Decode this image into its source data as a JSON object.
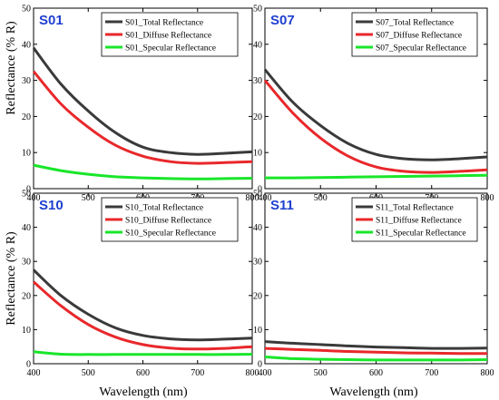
{
  "chart_data": {
    "type": "line",
    "panels": [
      {
        "title": "S01",
        "xlim": [
          400,
          800
        ],
        "ylim": [
          0,
          50
        ],
        "xticks": [
          400,
          500,
          600,
          700,
          800
        ],
        "yticks": [
          0,
          10,
          20,
          30,
          40,
          50
        ],
        "legend": "top-right",
        "series": [
          {
            "name": "S01_Total Reflectance",
            "x": [
              400,
              450,
              500,
              550,
              600,
              650,
              700,
              750,
              800
            ],
            "y": [
              39,
              29,
              21.5,
              15.5,
              11.5,
              10,
              9.5,
              9.8,
              10.2
            ]
          },
          {
            "name": "S01_Diffuse Reflectance",
            "x": [
              400,
              450,
              500,
              550,
              600,
              650,
              700,
              750,
              800
            ],
            "y": [
              32.5,
              23.5,
              17,
              12,
              9,
              7.5,
              7,
              7.2,
              7.5
            ]
          },
          {
            "name": "S01_Specular Reflectance",
            "x": [
              400,
              450,
              500,
              550,
              600,
              650,
              700,
              750,
              800
            ],
            "y": [
              6.5,
              5,
              4,
              3.3,
              3,
              2.8,
              2.7,
              2.8,
              2.9
            ]
          }
        ]
      },
      {
        "title": "S07",
        "xlim": [
          400,
          800
        ],
        "ylim": [
          0,
          50
        ],
        "xticks": [
          400,
          500,
          600,
          700,
          800
        ],
        "yticks": [
          0,
          10,
          20,
          30,
          40,
          50
        ],
        "legend": "top-right",
        "series": [
          {
            "name": "S07_Total Reflectance",
            "x": [
              400,
              450,
              500,
              550,
              600,
              650,
              700,
              750,
              800
            ],
            "y": [
              33,
              24,
              17.5,
              12.5,
              9.5,
              8.3,
              8,
              8.3,
              8.8
            ]
          },
          {
            "name": "S07_Diffuse Reflectance",
            "x": [
              400,
              450,
              500,
              550,
              600,
              650,
              700,
              750,
              800
            ],
            "y": [
              30,
              21,
              14,
              9,
              6,
              4.8,
              4.5,
              4.8,
              5.2
            ]
          },
          {
            "name": "S07_Specular Reflectance",
            "x": [
              400,
              450,
              500,
              550,
              600,
              650,
              700,
              750,
              800
            ],
            "y": [
              3,
              3,
              3.1,
              3.2,
              3.3,
              3.4,
              3.5,
              3.6,
              3.7
            ]
          }
        ]
      },
      {
        "title": "S10",
        "xlim": [
          400,
          800
        ],
        "ylim": [
          0,
          50
        ],
        "xticks": [
          400,
          500,
          600,
          700,
          800
        ],
        "yticks": [
          0,
          10,
          20,
          30,
          40,
          50
        ],
        "legend": "top-right",
        "series": [
          {
            "name": "S10_Total Reflectance",
            "x": [
              400,
              450,
              500,
              550,
              600,
              650,
              700,
              750,
              800
            ],
            "y": [
              27.5,
              20,
              14.5,
              10.5,
              8.3,
              7.3,
              7,
              7.2,
              7.5
            ]
          },
          {
            "name": "S10_Diffuse Reflectance",
            "x": [
              400,
              450,
              500,
              550,
              600,
              650,
              700,
              750,
              800
            ],
            "y": [
              24,
              17,
              11.5,
              7.8,
              5.6,
              4.6,
              4.3,
              4.5,
              5
            ]
          },
          {
            "name": "S10_Specular Reflectance",
            "x": [
              400,
              450,
              500,
              550,
              600,
              650,
              700,
              750,
              800
            ],
            "y": [
              3.5,
              2.8,
              2.7,
              2.7,
              2.7,
              2.7,
              2.7,
              2.7,
              2.8
            ]
          }
        ]
      },
      {
        "title": "S11",
        "xlim": [
          400,
          800
        ],
        "ylim": [
          0,
          50
        ],
        "xticks": [
          400,
          500,
          600,
          700,
          800
        ],
        "yticks": [
          0,
          10,
          20,
          30,
          40,
          50
        ],
        "legend": "top-right",
        "series": [
          {
            "name": "S11_Total Reflectance",
            "x": [
              400,
              450,
              500,
              550,
              600,
              650,
              700,
              750,
              800
            ],
            "y": [
              6.5,
              6,
              5.6,
              5.2,
              4.9,
              4.7,
              4.5,
              4.5,
              4.6
            ]
          },
          {
            "name": "S11_Diffuse Reflectance",
            "x": [
              400,
              450,
              500,
              550,
              600,
              650,
              700,
              750,
              800
            ],
            "y": [
              4.5,
              4.2,
              3.9,
              3.6,
              3.4,
              3.2,
              3.1,
              3,
              3
            ]
          },
          {
            "name": "S11_Specular Reflectance",
            "x": [
              400,
              450,
              500,
              550,
              600,
              650,
              700,
              750,
              800
            ],
            "y": [
              2,
              1.5,
              1.3,
              1.2,
              1.1,
              1.1,
              1.1,
              1.1,
              1.2
            ]
          }
        ]
      }
    ],
    "xlabel": "Wavelength (nm)",
    "ylabel": "Reflectance (% R)",
    "grid": false
  },
  "colors": {
    "total": "#3a3a3a",
    "diffuse": "#e8282b",
    "specular": "#19e62a",
    "title": "#1f3fcf",
    "axis": "#000000"
  }
}
